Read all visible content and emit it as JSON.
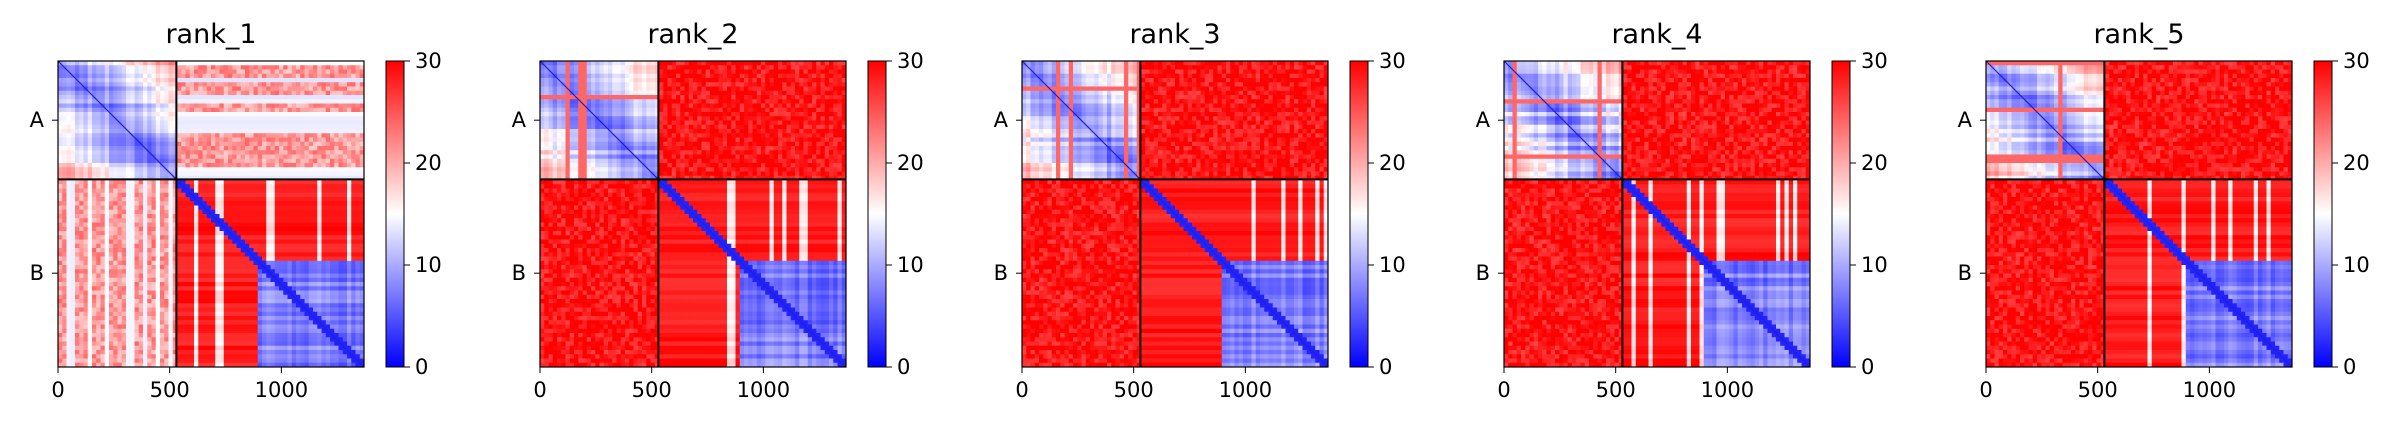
{
  "chart_data": [
    {
      "type": "heatmap",
      "title": "rank_1",
      "xlabel": "",
      "ylabel": "",
      "x_ticks": [
        0,
        500,
        1000
      ],
      "xlim": [
        0,
        1370
      ],
      "y_ticks": [
        "A",
        "B"
      ],
      "chain_boundary": 530,
      "chains": [
        {
          "name": "A",
          "length": 530
        },
        {
          "name": "B",
          "length": 840
        }
      ],
      "colormap": [
        "#0000ff",
        "#ffffff",
        "#ff0000"
      ],
      "colorbar": {
        "min": 0,
        "max": 30,
        "ticks": [
          0,
          10,
          20,
          30
        ]
      },
      "inter_chain_mean": 21,
      "intra_chain_mean": {
        "A": 9,
        "B": 16
      }
    },
    {
      "type": "heatmap",
      "title": "rank_2",
      "xlabel": "",
      "ylabel": "",
      "x_ticks": [
        0,
        500,
        1000
      ],
      "xlim": [
        0,
        1370
      ],
      "y_ticks": [
        "A",
        "B"
      ],
      "chain_boundary": 530,
      "chains": [
        {
          "name": "A",
          "length": 530
        },
        {
          "name": "B",
          "length": 840
        }
      ],
      "colormap": [
        "#0000ff",
        "#ffffff",
        "#ff0000"
      ],
      "colorbar": {
        "min": 0,
        "max": 30,
        "ticks": [
          0,
          10,
          20,
          30
        ]
      },
      "inter_chain_mean": 29,
      "intra_chain_mean": {
        "A": 9,
        "B": 16
      }
    },
    {
      "type": "heatmap",
      "title": "rank_3",
      "xlabel": "",
      "ylabel": "",
      "x_ticks": [
        0,
        500,
        1000
      ],
      "xlim": [
        0,
        1370
      ],
      "y_ticks": [
        "A",
        "B"
      ],
      "chain_boundary": 530,
      "chains": [
        {
          "name": "A",
          "length": 530
        },
        {
          "name": "B",
          "length": 840
        }
      ],
      "colormap": [
        "#0000ff",
        "#ffffff",
        "#ff0000"
      ],
      "colorbar": {
        "min": 0,
        "max": 30,
        "ticks": [
          0,
          10,
          20,
          30
        ]
      },
      "inter_chain_mean": 29,
      "intra_chain_mean": {
        "A": 9,
        "B": 16
      }
    },
    {
      "type": "heatmap",
      "title": "rank_4",
      "xlabel": "",
      "ylabel": "",
      "x_ticks": [
        0,
        500,
        1000
      ],
      "xlim": [
        0,
        1370
      ],
      "y_ticks": [
        "A",
        "B"
      ],
      "chain_boundary": 530,
      "chains": [
        {
          "name": "A",
          "length": 530
        },
        {
          "name": "B",
          "length": 840
        }
      ],
      "colormap": [
        "#0000ff",
        "#ffffff",
        "#ff0000"
      ],
      "colorbar": {
        "min": 0,
        "max": 30,
        "ticks": [
          0,
          10,
          20,
          30
        ]
      },
      "inter_chain_mean": 29,
      "intra_chain_mean": {
        "A": 9,
        "B": 16
      }
    },
    {
      "type": "heatmap",
      "title": "rank_5",
      "xlabel": "",
      "ylabel": "",
      "x_ticks": [
        0,
        500,
        1000
      ],
      "xlim": [
        0,
        1370
      ],
      "y_ticks": [
        "A",
        "B"
      ],
      "chain_boundary": 530,
      "chains": [
        {
          "name": "A",
          "length": 530
        },
        {
          "name": "B",
          "length": 840
        }
      ],
      "colormap": [
        "#0000ff",
        "#ffffff",
        "#ff0000"
      ],
      "colorbar": {
        "min": 0,
        "max": 30,
        "ticks": [
          0,
          10,
          20,
          30
        ]
      },
      "inter_chain_mean": 29,
      "intra_chain_mean": {
        "A": 9,
        "B": 16
      }
    }
  ]
}
